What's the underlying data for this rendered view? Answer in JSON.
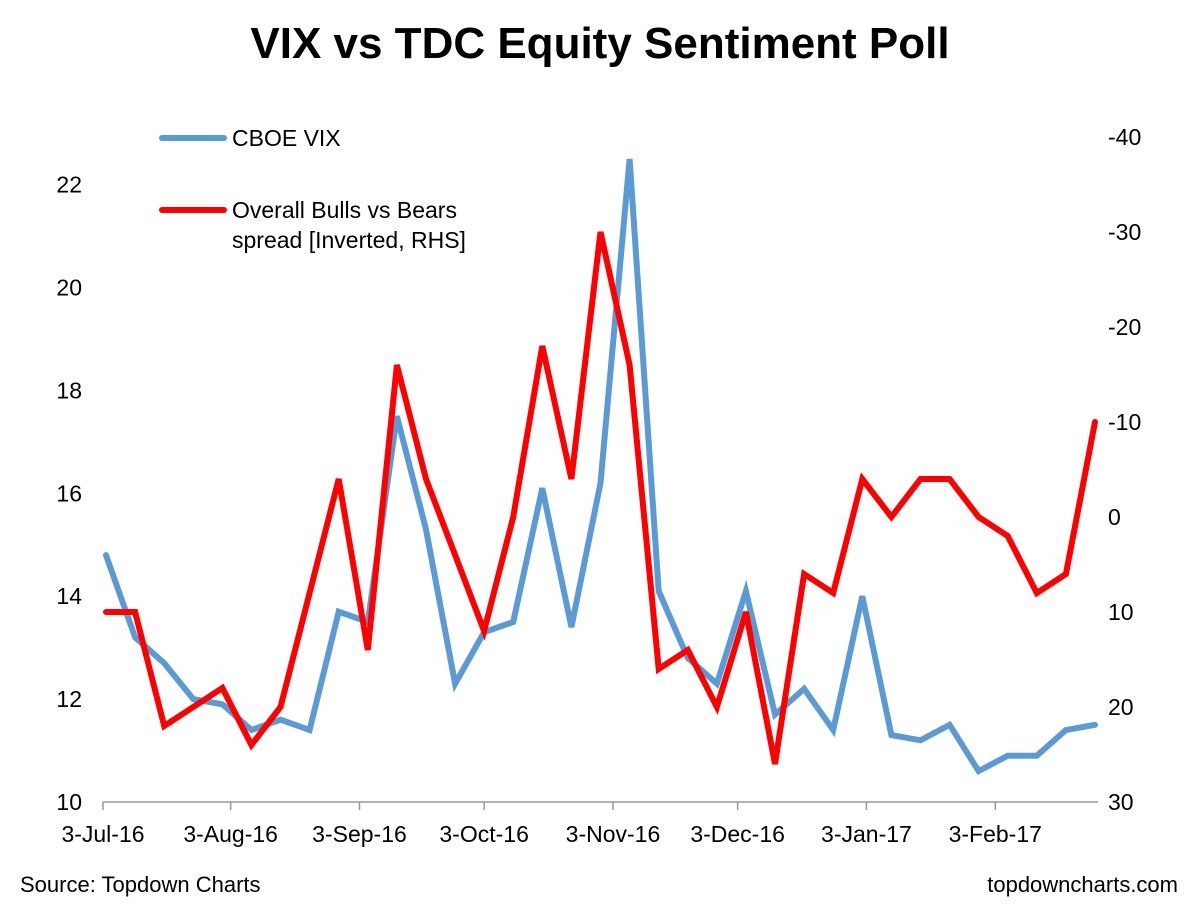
{
  "chart_data": {
    "type": "line",
    "title": "VIX vs TDC Equity Sentiment Poll",
    "x_tick_labels": [
      "3-Jul-16",
      "3-Aug-16",
      "3-Sep-16",
      "3-Oct-16",
      "3-Nov-16",
      "3-Dec-16",
      "3-Jan-17",
      "3-Feb-17"
    ],
    "y_left": {
      "ylim": [
        10,
        22.5
      ],
      "ticks": [
        10,
        12,
        14,
        16,
        18,
        20,
        22
      ]
    },
    "y_right": {
      "inverted": true,
      "ylim": [
        30,
        -40
      ],
      "ticks": [
        30,
        20,
        10,
        0,
        -10,
        -20,
        -30,
        -40
      ]
    },
    "legend_placement": "top-left",
    "series": [
      {
        "name": "CBOE VIX",
        "axis": "left",
        "color": "#5B9BD5",
        "x": [
          "2016-07-04",
          "2016-07-11",
          "2016-07-18",
          "2016-07-25",
          "2016-08-01",
          "2016-08-08",
          "2016-08-15",
          "2016-08-22",
          "2016-08-29",
          "2016-09-05",
          "2016-09-12",
          "2016-09-19",
          "2016-09-26",
          "2016-10-03",
          "2016-10-10",
          "2016-10-17",
          "2016-10-24",
          "2016-10-31",
          "2016-11-07",
          "2016-11-14",
          "2016-11-21",
          "2016-11-28",
          "2016-12-05",
          "2016-12-12",
          "2016-12-19",
          "2016-12-26",
          "2017-01-02",
          "2017-01-09",
          "2017-01-16",
          "2017-01-23",
          "2017-01-30",
          "2017-02-06",
          "2017-02-13",
          "2017-02-20",
          "2017-02-27"
        ],
        "values": [
          14.8,
          13.2,
          12.7,
          12.0,
          11.9,
          11.4,
          11.6,
          11.4,
          13.7,
          13.5,
          17.5,
          15.3,
          12.3,
          13.3,
          13.5,
          16.1,
          13.4,
          16.2,
          22.5,
          14.1,
          12.8,
          12.3,
          14.1,
          11.7,
          12.2,
          11.4,
          14.0,
          11.3,
          11.2,
          11.5,
          10.6,
          10.9,
          10.9,
          11.4,
          11.5
        ]
      },
      {
        "name": "Overall Bulls vs Bears spread [Inverted, RHS]",
        "legend_lines": [
          "Overall Bulls vs Bears",
          "spread [Inverted, RHS]"
        ],
        "axis": "right",
        "color": "#FF0000",
        "x": [
          "2016-07-04",
          "2016-07-11",
          "2016-07-18",
          "2016-07-25",
          "2016-08-01",
          "2016-08-08",
          "2016-08-15",
          "2016-08-22",
          "2016-08-29",
          "2016-09-05",
          "2016-09-12",
          "2016-09-19",
          "2016-09-26",
          "2016-10-03",
          "2016-10-10",
          "2016-10-17",
          "2016-10-24",
          "2016-10-31",
          "2016-11-07",
          "2016-11-14",
          "2016-11-21",
          "2016-11-28",
          "2016-12-05",
          "2016-12-12",
          "2016-12-19",
          "2016-12-26",
          "2017-01-02",
          "2017-01-09",
          "2017-01-16",
          "2017-01-23",
          "2017-01-30",
          "2017-02-06",
          "2017-02-13",
          "2017-02-20",
          "2017-02-27"
        ],
        "values": [
          10,
          10,
          22,
          20,
          18,
          24,
          20,
          8,
          -4,
          14,
          -16,
          -4,
          4,
          12,
          0,
          -18,
          -4,
          -30,
          -16,
          16,
          14,
          20,
          10,
          26,
          6,
          8,
          -4,
          0,
          -4,
          -4,
          0,
          2,
          8,
          6,
          -10
        ]
      }
    ]
  },
  "footer": {
    "source": "Source: Topdown Charts",
    "site": "topdowncharts.com"
  }
}
